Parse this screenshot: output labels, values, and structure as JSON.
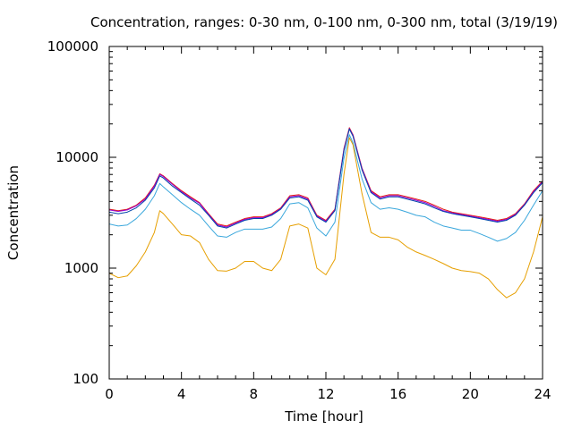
{
  "chart_data": {
    "type": "line",
    "title": "Concentration, ranges: 0-30 nm, 0-100 nm, 0-300 nm, total (3/19/19)",
    "xlabel": "Time [hour]",
    "ylabel": "Concentration",
    "xlim": [
      0,
      24
    ],
    "ylim": [
      100,
      100000
    ],
    "yscale": "log",
    "grid": false,
    "x_ticks": [
      "0",
      "4",
      "8",
      "12",
      "16",
      "20",
      "24"
    ],
    "y_ticks": [
      "100",
      "1000",
      "10000",
      "100000"
    ],
    "x": [
      0,
      0.5,
      1,
      1.5,
      2,
      2.5,
      2.8,
      3,
      3.5,
      4,
      4.5,
      5,
      5.5,
      6,
      6.5,
      7,
      7.5,
      8,
      8.5,
      9,
      9.5,
      10,
      10.5,
      11,
      11.5,
      12,
      12.5,
      13,
      13.3,
      13.5,
      14,
      14.5,
      15,
      15.5,
      16,
      16.5,
      17,
      17.5,
      18,
      18.5,
      19,
      19.5,
      20,
      20.5,
      21,
      21.5,
      22,
      22.5,
      23,
      23.5,
      24
    ],
    "series": [
      {
        "color": "#e51e10",
        "values": [
          3400,
          3300,
          3400,
          3700,
          4300,
          5600,
          7100,
          6800,
          5800,
          5000,
          4400,
          3900,
          3100,
          2500,
          2400,
          2600,
          2800,
          2900,
          2900,
          3100,
          3500,
          4500,
          4600,
          4300,
          3000,
          2700,
          3400,
          12000,
          18500,
          16000,
          8000,
          5000,
          4400,
          4600,
          4600,
          4400,
          4200,
          4000,
          3700,
          3400,
          3200,
          3100,
          3000,
          2900,
          2800,
          2700,
          2800,
          3100,
          3800,
          5000,
          6100
        ]
      },
      {
        "color": "#9400d3",
        "values": [
          3350,
          3250,
          3350,
          3650,
          4200,
          5500,
          7000,
          6700,
          5700,
          4900,
          4300,
          3850,
          3050,
          2450,
          2350,
          2550,
          2750,
          2850,
          2850,
          3050,
          3450,
          4400,
          4500,
          4200,
          2950,
          2650,
          3350,
          11800,
          18200,
          15800,
          7900,
          4900,
          4300,
          4500,
          4500,
          4300,
          4100,
          3900,
          3600,
          3300,
          3150,
          3050,
          2950,
          2850,
          2750,
          2650,
          2750,
          3050,
          3750,
          4900,
          6000
        ]
      },
      {
        "color": "#0044aa",
        "values": [
          3200,
          3100,
          3200,
          3500,
          4100,
          5300,
          6800,
          6500,
          5500,
          4800,
          4200,
          3700,
          3000,
          2400,
          2300,
          2500,
          2700,
          2800,
          2800,
          3000,
          3400,
          4300,
          4400,
          4100,
          2900,
          2600,
          3300,
          11500,
          18000,
          15500,
          7700,
          4800,
          4200,
          4400,
          4400,
          4200,
          4000,
          3800,
          3500,
          3250,
          3100,
          3000,
          2900,
          2800,
          2700,
          2600,
          2700,
          3000,
          3700,
          4800,
          5900
        ]
      },
      {
        "color": "#3aa7dc",
        "values": [
          2500,
          2400,
          2450,
          2800,
          3400,
          4500,
          5800,
          5400,
          4600,
          3900,
          3400,
          3000,
          2400,
          1950,
          1900,
          2100,
          2250,
          2250,
          2250,
          2350,
          2800,
          3800,
          3900,
          3500,
          2300,
          1950,
          2600,
          9800,
          16000,
          13500,
          6400,
          3900,
          3400,
          3500,
          3400,
          3200,
          3000,
          2900,
          2600,
          2400,
          2300,
          2200,
          2200,
          2050,
          1900,
          1750,
          1850,
          2100,
          2700,
          3700,
          5000
        ]
      },
      {
        "color": "#e69f00",
        "values": [
          900,
          820,
          850,
          1050,
          1400,
          2100,
          3300,
          3100,
          2500,
          2000,
          1950,
          1700,
          1200,
          950,
          940,
          1000,
          1150,
          1150,
          1000,
          950,
          1200,
          2400,
          2500,
          2300,
          1000,
          870,
          1200,
          7000,
          15000,
          13000,
          4700,
          2100,
          1900,
          1900,
          1800,
          1550,
          1400,
          1300,
          1200,
          1100,
          1000,
          950,
          930,
          900,
          800,
          640,
          540,
          600,
          800,
          1400,
          2900
        ]
      }
    ]
  }
}
